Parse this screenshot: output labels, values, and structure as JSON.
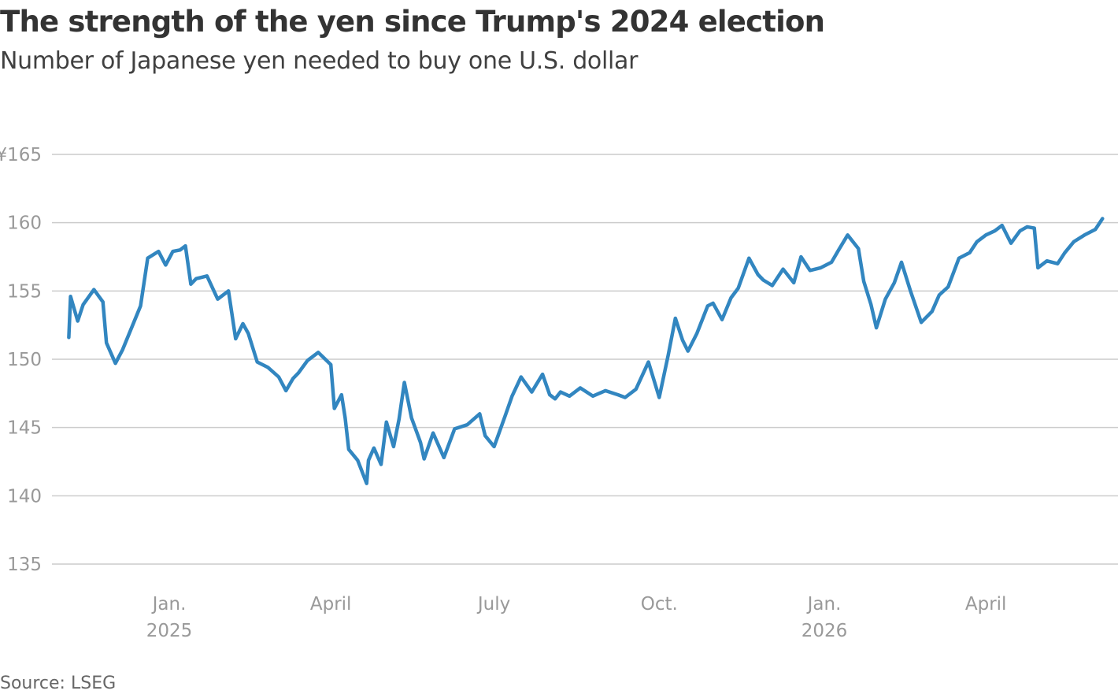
{
  "title": "The strength of the yen since Trump's 2024 election",
  "subtitle": "Number of Japanese yen needed to buy one U.S. dollar",
  "source": "Source: LSEG",
  "chart_data": {
    "type": "line",
    "ylim": [
      135,
      165
    ],
    "y_ticks": [
      "¥165",
      "160",
      "155",
      "150",
      "145",
      "140",
      "135"
    ],
    "x_ticks": [
      {
        "month": "Jan.",
        "year": "2025"
      },
      {
        "month": "April",
        "year": ""
      },
      {
        "month": "July",
        "year": ""
      },
      {
        "month": "Oct.",
        "year": ""
      },
      {
        "month": "Jan.",
        "year": "2026"
      },
      {
        "month": "April",
        "year": ""
      }
    ],
    "grid": true,
    "line_color": "#3286c0",
    "series": [
      {
        "x": [
          "2024-11-06",
          "2024-11-07",
          "2024-11-11",
          "2024-11-14",
          "2024-11-20",
          "2024-11-25",
          "2024-11-27",
          "2024-12-02",
          "2024-12-06",
          "2024-12-11",
          "2024-12-16",
          "2024-12-20",
          "2024-12-26",
          "2024-12-30",
          "2025-01-03",
          "2025-01-07",
          "2025-01-10",
          "2025-01-13",
          "2025-01-16",
          "2025-01-22",
          "2025-01-28",
          "2025-02-03",
          "2025-02-07",
          "2025-02-11",
          "2025-02-14",
          "2025-02-19",
          "2025-02-25",
          "2025-03-03",
          "2025-03-07",
          "2025-03-11",
          "2025-03-14",
          "2025-03-19",
          "2025-03-25",
          "2025-04-01",
          "2025-04-03",
          "2025-04-07",
          "2025-04-09",
          "2025-04-11",
          "2025-04-16",
          "2025-04-21",
          "2025-04-22",
          "2025-04-25",
          "2025-04-29",
          "2025-05-02",
          "2025-05-06",
          "2025-05-09",
          "2025-05-12",
          "2025-05-16",
          "2025-05-21",
          "2025-05-23",
          "2025-05-28",
          "2025-06-03",
          "2025-06-09",
          "2025-06-16",
          "2025-06-23",
          "2025-06-26",
          "2025-07-01",
          "2025-07-07",
          "2025-07-11",
          "2025-07-16",
          "2025-07-22",
          "2025-07-28",
          "2025-08-01",
          "2025-08-04",
          "2025-08-07",
          "2025-08-12",
          "2025-08-18",
          "2025-08-25",
          "2025-09-01",
          "2025-09-08",
          "2025-09-12",
          "2025-09-18",
          "2025-09-25",
          "2025-10-01",
          "2025-10-06",
          "2025-10-10",
          "2025-10-14",
          "2025-10-17",
          "2025-10-22",
          "2025-10-28",
          "2025-10-31",
          "2025-11-05",
          "2025-11-10",
          "2025-11-14",
          "2025-11-20",
          "2025-11-25",
          "2025-11-28",
          "2025-12-03",
          "2025-12-09",
          "2025-12-15",
          "2025-12-19",
          "2025-12-24",
          "2025-12-30",
          "2026-01-05",
          "2026-01-09",
          "2026-01-14",
          "2026-01-20",
          "2026-01-23",
          "2026-01-27",
          "2026-01-30",
          "2026-02-04",
          "2026-02-09",
          "2026-02-13",
          "2026-02-18",
          "2026-02-24",
          "2026-03-02",
          "2026-03-06",
          "2026-03-11",
          "2026-03-17",
          "2026-03-23",
          "2026-03-27",
          "2026-04-01",
          "2026-04-06",
          "2026-04-10",
          "2026-04-15",
          "2026-04-20",
          "2026-04-24",
          "2026-04-28",
          "2026-04-30",
          "2026-05-05",
          "2026-05-11",
          "2026-05-15",
          "2026-05-20",
          "2026-05-26",
          "2026-06-01",
          "2026-06-05"
        ],
        "values": [
          151.6,
          154.6,
          152.8,
          154.0,
          155.1,
          154.2,
          151.2,
          149.7,
          150.7,
          152.3,
          153.9,
          157.4,
          157.9,
          156.9,
          157.9,
          158.0,
          158.3,
          155.5,
          155.9,
          156.1,
          154.4,
          155.0,
          151.5,
          152.6,
          151.9,
          149.8,
          149.4,
          148.7,
          147.7,
          148.6,
          149.0,
          149.9,
          150.5,
          149.6,
          146.4,
          147.4,
          145.7,
          143.4,
          142.6,
          140.9,
          142.6,
          143.5,
          142.3,
          145.4,
          143.6,
          145.6,
          148.3,
          145.7,
          143.9,
          142.7,
          144.6,
          142.8,
          144.9,
          145.2,
          146.0,
          144.4,
          143.6,
          145.8,
          147.3,
          148.7,
          147.6,
          148.9,
          147.4,
          147.1,
          147.6,
          147.3,
          147.9,
          147.3,
          147.7,
          147.4,
          147.2,
          147.8,
          149.8,
          147.2,
          150.3,
          153.0,
          151.4,
          150.6,
          151.9,
          153.9,
          154.1,
          152.9,
          154.5,
          155.2,
          157.4,
          156.2,
          155.8,
          155.4,
          156.6,
          155.6,
          157.5,
          156.5,
          156.7,
          157.1,
          158.0,
          159.1,
          158.1,
          155.7,
          154.0,
          152.3,
          154.4,
          155.6,
          157.1,
          155.0,
          152.7,
          153.5,
          154.7,
          155.3,
          157.4,
          157.8,
          158.6,
          159.1,
          159.4,
          159.8,
          158.5,
          159.4,
          159.7,
          159.6,
          156.7,
          157.2,
          157.0,
          157.8,
          158.6,
          159.1,
          159.5,
          160.3
        ]
      }
    ]
  }
}
